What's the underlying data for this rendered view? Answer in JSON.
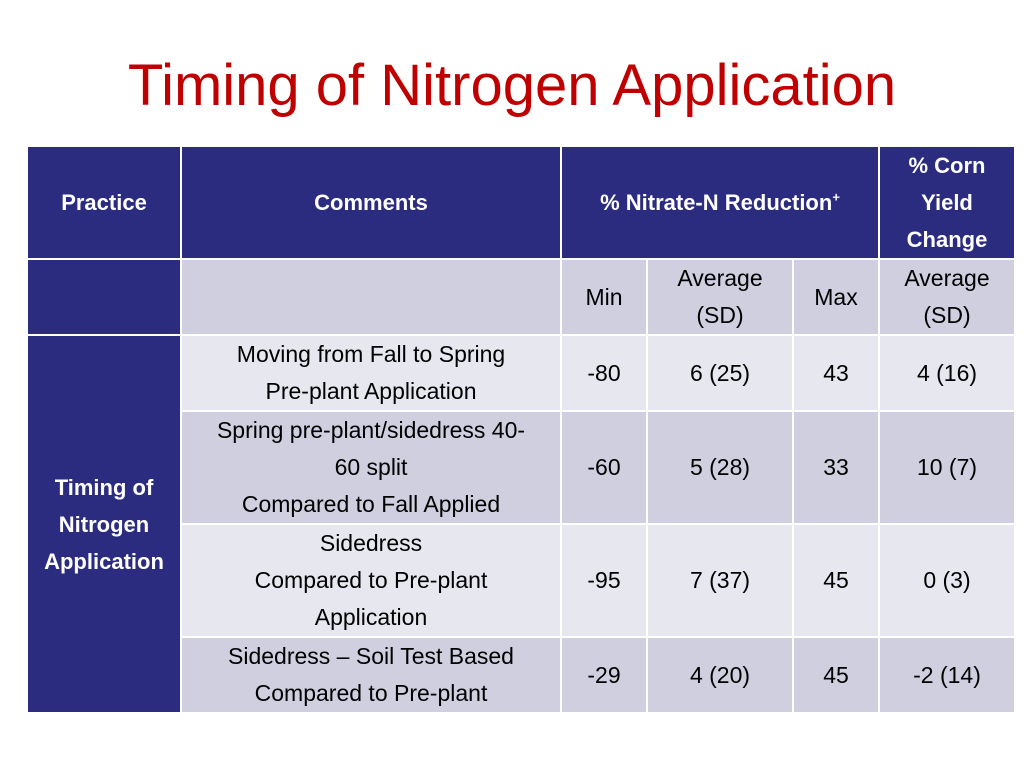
{
  "title": "Timing of Nitrogen Application",
  "header": {
    "practice": "Practice",
    "comments": "Comments",
    "nitrate": "% Nitrate-N Reduction",
    "nitrate_sup": "+",
    "yield_line1": "% Corn",
    "yield_line2": "Yield",
    "yield_line3": "Change"
  },
  "subheader": {
    "min": "Min",
    "avg_line1": "Average",
    "avg_line2": "(SD)",
    "max": "Max",
    "yield_avg_line1": "Average",
    "yield_avg_line2": "(SD)"
  },
  "row_group": {
    "line1": "Timing of",
    "line2": "Nitrogen",
    "line3": "Application"
  },
  "rows": [
    {
      "comment_lines": [
        "Moving from Fall to Spring",
        "Pre-plant Application"
      ],
      "min": "-80",
      "avg": "6 (25)",
      "max": "43",
      "yield": "4 (16)"
    },
    {
      "comment_lines": [
        "Spring pre-plant/sidedress 40-",
        "60 split",
        "Compared to Fall Applied"
      ],
      "min": "-60",
      "avg": "5 (28)",
      "max": "33",
      "yield": "10 (7)"
    },
    {
      "comment_lines": [
        "Sidedress",
        "Compared to Pre-plant",
        "Application"
      ],
      "min": "-95",
      "avg": "7 (37)",
      "max": "45",
      "yield": "0 (3)"
    },
    {
      "comment_lines": [
        "Sidedress – Soil Test Based",
        "Compared to Pre-plant"
      ],
      "min": "-29",
      "avg": "4 (20)",
      "max": "45",
      "yield": "-2 (14)"
    }
  ]
}
